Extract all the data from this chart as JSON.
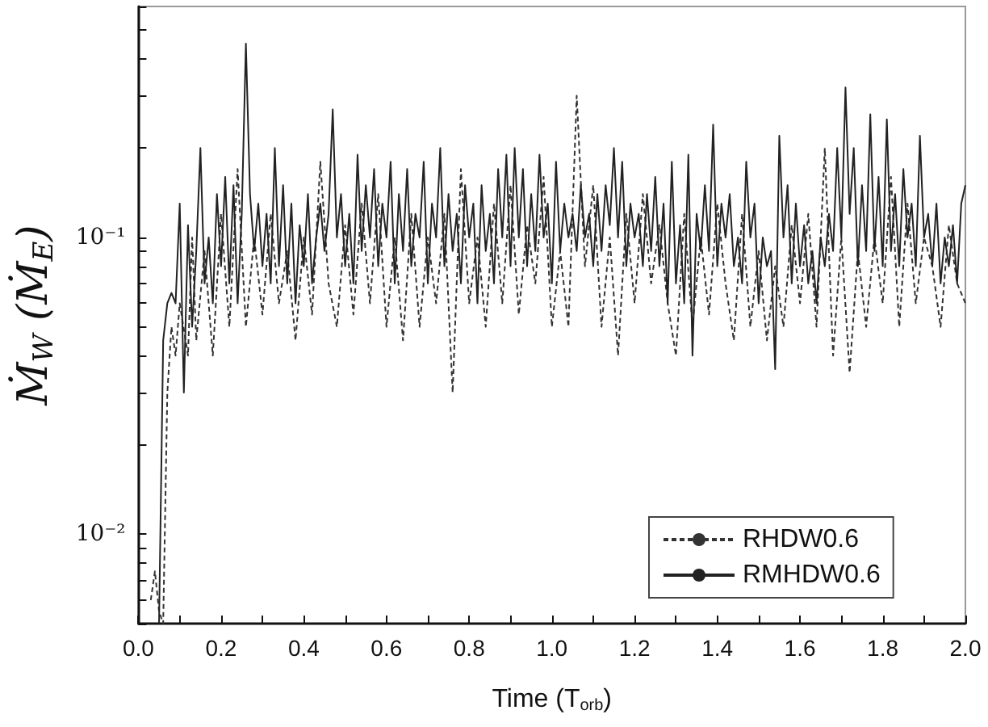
{
  "chart_data": {
    "type": "line",
    "xlabel": "Time (T$_{orb}$)",
    "ylabel": "Ṁ$_{W}$ (Ṁ$_{E}$)",
    "log": "y",
    "grid": false,
    "legend": "bottom right",
    "marker": "none",
    "xlim": [
      0,
      2
    ],
    "ylim": [
      0.005,
      0.6
    ],
    "xticks": [
      {
        "value": 0,
        "label": "0.0"
      },
      {
        "value": 0.1,
        "label": null
      },
      {
        "value": 0.2,
        "label": "0.2"
      },
      {
        "value": 0.3,
        "label": null
      },
      {
        "value": 0.4,
        "label": "0.4"
      },
      {
        "value": 0.5,
        "label": null
      },
      {
        "value": 0.6,
        "label": "0.6"
      },
      {
        "value": 0.7,
        "label": null
      },
      {
        "value": 0.8,
        "label": "0.8"
      },
      {
        "value": 0.9,
        "label": null
      },
      {
        "value": 1,
        "label": "1.0"
      },
      {
        "value": 1.1,
        "label": null
      },
      {
        "value": 1.2,
        "label": "1.2"
      },
      {
        "value": 1.3,
        "label": null
      },
      {
        "value": 1.4,
        "label": "1.4"
      },
      {
        "value": 1.5,
        "label": null
      },
      {
        "value": 1.6,
        "label": "1.6"
      },
      {
        "value": 1.7,
        "label": null
      },
      {
        "value": 1.8,
        "label": "1.8"
      },
      {
        "value": 1.9,
        "label": null
      },
      {
        "value": 2,
        "label": "2.0"
      }
    ],
    "yticks": [
      {
        "value": 0.005,
        "label": null
      },
      {
        "value": 0.006,
        "label": null
      },
      {
        "value": 0.007,
        "label": null
      },
      {
        "value": 0.008,
        "label": null
      },
      {
        "value": 0.009,
        "label": null
      },
      {
        "value": 0.01,
        "label": "10⁻²"
      },
      {
        "value": 0.02,
        "label": null
      },
      {
        "value": 0.03,
        "label": null
      },
      {
        "value": 0.04,
        "label": null
      },
      {
        "value": 0.05,
        "label": null
      },
      {
        "value": 0.06,
        "label": null
      },
      {
        "value": 0.07,
        "label": null
      },
      {
        "value": 0.08,
        "label": null
      },
      {
        "value": 0.09,
        "label": null
      },
      {
        "value": 0.1,
        "label": "10⁻¹"
      },
      {
        "value": 0.2,
        "label": null
      },
      {
        "value": 0.3,
        "label": null
      },
      {
        "value": 0.4,
        "label": null
      },
      {
        "value": 0.5,
        "label": null
      },
      {
        "value": 0.6,
        "label": null
      }
    ],
    "series": [
      {
        "name": "RHDW0.6",
        "color": "#333333",
        "line_style": "dashed",
        "x": [
          0.03,
          0.04,
          0.05,
          0.06,
          0.07,
          0.08,
          0.09,
          0.1,
          0.12,
          0.13,
          0.14,
          0.16,
          0.18,
          0.2,
          0.22,
          0.24,
          0.26,
          0.28,
          0.3,
          0.32,
          0.34,
          0.36,
          0.38,
          0.4,
          0.42,
          0.44,
          0.46,
          0.48,
          0.5,
          0.52,
          0.54,
          0.56,
          0.58,
          0.6,
          0.62,
          0.64,
          0.66,
          0.68,
          0.7,
          0.72,
          0.74,
          0.76,
          0.78,
          0.8,
          0.82,
          0.84,
          0.86,
          0.88,
          0.9,
          0.92,
          0.94,
          0.96,
          0.98,
          1.0,
          1.02,
          1.04,
          1.06,
          1.08,
          1.1,
          1.12,
          1.14,
          1.16,
          1.18,
          1.2,
          1.22,
          1.24,
          1.26,
          1.28,
          1.3,
          1.32,
          1.34,
          1.36,
          1.38,
          1.4,
          1.42,
          1.44,
          1.46,
          1.48,
          1.5,
          1.52,
          1.54,
          1.56,
          1.58,
          1.6,
          1.62,
          1.64,
          1.66,
          1.68,
          1.7,
          1.72,
          1.74,
          1.76,
          1.78,
          1.8,
          1.82,
          1.84,
          1.86,
          1.88,
          1.9,
          1.92,
          1.94,
          1.96,
          1.98,
          2.0
        ],
        "values": [
          0.006,
          0.0075,
          0.0055,
          0.005,
          0.03,
          0.05,
          0.04,
          0.06,
          0.04,
          0.1,
          0.045,
          0.09,
          0.04,
          0.12,
          0.05,
          0.17,
          0.05,
          0.1,
          0.055,
          0.12,
          0.06,
          0.09,
          0.045,
          0.1,
          0.055,
          0.18,
          0.07,
          0.05,
          0.11,
          0.055,
          0.13,
          0.06,
          0.14,
          0.05,
          0.1,
          0.045,
          0.12,
          0.05,
          0.1,
          0.06,
          0.12,
          0.03,
          0.17,
          0.06,
          0.1,
          0.05,
          0.13,
          0.06,
          0.15,
          0.055,
          0.11,
          0.07,
          0.16,
          0.05,
          0.09,
          0.05,
          0.3,
          0.08,
          0.15,
          0.05,
          0.1,
          0.04,
          0.12,
          0.06,
          0.14,
          0.07,
          0.11,
          0.06,
          0.04,
          0.12,
          0.05,
          0.1,
          0.055,
          0.13,
          0.07,
          0.045,
          0.12,
          0.05,
          0.09,
          0.045,
          0.08,
          0.05,
          0.11,
          0.06,
          0.12,
          0.05,
          0.2,
          0.04,
          0.1,
          0.035,
          0.09,
          0.05,
          0.1,
          0.06,
          0.16,
          0.05,
          0.13,
          0.06,
          0.1,
          0.08,
          0.05,
          0.11,
          0.07,
          0.06
        ]
      },
      {
        "name": "RMHDW0.6",
        "color": "#222222",
        "line_style": "solid",
        "x": [
          0.05,
          0.06,
          0.07,
          0.08,
          0.09,
          0.1,
          0.11,
          0.12,
          0.13,
          0.14,
          0.15,
          0.16,
          0.17,
          0.18,
          0.19,
          0.2,
          0.21,
          0.22,
          0.23,
          0.24,
          0.25,
          0.26,
          0.27,
          0.28,
          0.29,
          0.3,
          0.31,
          0.32,
          0.33,
          0.34,
          0.35,
          0.36,
          0.37,
          0.38,
          0.39,
          0.4,
          0.41,
          0.42,
          0.43,
          0.44,
          0.45,
          0.46,
          0.47,
          0.48,
          0.49,
          0.5,
          0.51,
          0.52,
          0.53,
          0.54,
          0.55,
          0.56,
          0.57,
          0.58,
          0.59,
          0.6,
          0.61,
          0.62,
          0.63,
          0.64,
          0.65,
          0.66,
          0.67,
          0.68,
          0.69,
          0.7,
          0.71,
          0.72,
          0.73,
          0.74,
          0.75,
          0.76,
          0.77,
          0.78,
          0.79,
          0.8,
          0.81,
          0.82,
          0.83,
          0.84,
          0.85,
          0.86,
          0.87,
          0.88,
          0.89,
          0.9,
          0.91,
          0.92,
          0.93,
          0.94,
          0.95,
          0.96,
          0.97,
          0.98,
          0.99,
          1.0,
          1.01,
          1.02,
          1.03,
          1.04,
          1.05,
          1.06,
          1.07,
          1.08,
          1.09,
          1.1,
          1.11,
          1.12,
          1.13,
          1.14,
          1.15,
          1.16,
          1.17,
          1.18,
          1.19,
          1.2,
          1.21,
          1.22,
          1.23,
          1.24,
          1.25,
          1.26,
          1.27,
          1.28,
          1.29,
          1.3,
          1.31,
          1.32,
          1.33,
          1.34,
          1.35,
          1.36,
          1.37,
          1.38,
          1.39,
          1.4,
          1.41,
          1.42,
          1.43,
          1.44,
          1.45,
          1.46,
          1.47,
          1.48,
          1.49,
          1.5,
          1.51,
          1.52,
          1.53,
          1.54,
          1.55,
          1.56,
          1.57,
          1.58,
          1.59,
          1.6,
          1.61,
          1.62,
          1.63,
          1.64,
          1.65,
          1.66,
          1.67,
          1.68,
          1.69,
          1.7,
          1.71,
          1.72,
          1.73,
          1.74,
          1.75,
          1.76,
          1.77,
          1.78,
          1.79,
          1.8,
          1.81,
          1.82,
          1.83,
          1.84,
          1.85,
          1.86,
          1.87,
          1.88,
          1.89,
          1.9,
          1.91,
          1.92,
          1.93,
          1.94,
          1.95,
          1.96,
          1.97,
          1.98,
          1.99,
          2.0
        ],
        "values": [
          0.005,
          0.045,
          0.06,
          0.065,
          0.06,
          0.13,
          0.03,
          0.11,
          0.05,
          0.09,
          0.2,
          0.07,
          0.1,
          0.06,
          0.14,
          0.08,
          0.16,
          0.07,
          0.15,
          0.06,
          0.12,
          0.45,
          0.14,
          0.09,
          0.13,
          0.08,
          0.12,
          0.07,
          0.2,
          0.08,
          0.15,
          0.07,
          0.13,
          0.06,
          0.11,
          0.08,
          0.14,
          0.07,
          0.1,
          0.13,
          0.09,
          0.12,
          0.27,
          0.1,
          0.14,
          0.08,
          0.12,
          0.07,
          0.19,
          0.09,
          0.15,
          0.1,
          0.17,
          0.08,
          0.13,
          0.1,
          0.18,
          0.07,
          0.14,
          0.09,
          0.17,
          0.08,
          0.12,
          0.1,
          0.18,
          0.07,
          0.13,
          0.1,
          0.2,
          0.08,
          0.14,
          0.09,
          0.12,
          0.07,
          0.15,
          0.1,
          0.13,
          0.06,
          0.15,
          0.09,
          0.12,
          0.07,
          0.17,
          0.1,
          0.19,
          0.08,
          0.2,
          0.1,
          0.17,
          0.08,
          0.14,
          0.09,
          0.19,
          0.1,
          0.13,
          0.07,
          0.18,
          0.09,
          0.13,
          0.1,
          0.12,
          0.09,
          0.15,
          0.1,
          0.12,
          0.08,
          0.14,
          0.09,
          0.15,
          0.11,
          0.2,
          0.1,
          0.18,
          0.08,
          0.13,
          0.1,
          0.12,
          0.08,
          0.14,
          0.09,
          0.16,
          0.08,
          0.13,
          0.06,
          0.18,
          0.07,
          0.11,
          0.06,
          0.19,
          0.04,
          0.12,
          0.09,
          0.15,
          0.09,
          0.24,
          0.08,
          0.13,
          0.1,
          0.14,
          0.08,
          0.1,
          0.07,
          0.18,
          0.1,
          0.13,
          0.06,
          0.1,
          0.08,
          0.09,
          0.036,
          0.22,
          0.1,
          0.15,
          0.07,
          0.13,
          0.08,
          0.11,
          0.07,
          0.09,
          0.06,
          0.1,
          0.08,
          0.12,
          0.09,
          0.2,
          0.1,
          0.32,
          0.12,
          0.2,
          0.08,
          0.15,
          0.09,
          0.26,
          0.09,
          0.16,
          0.08,
          0.25,
          0.09,
          0.14,
          0.08,
          0.17,
          0.1,
          0.13,
          0.08,
          0.22,
          0.1,
          0.12,
          0.08,
          0.13,
          0.07,
          0.1,
          0.08,
          0.11,
          0.07,
          0.13,
          0.15
        ]
      }
    ]
  }
}
